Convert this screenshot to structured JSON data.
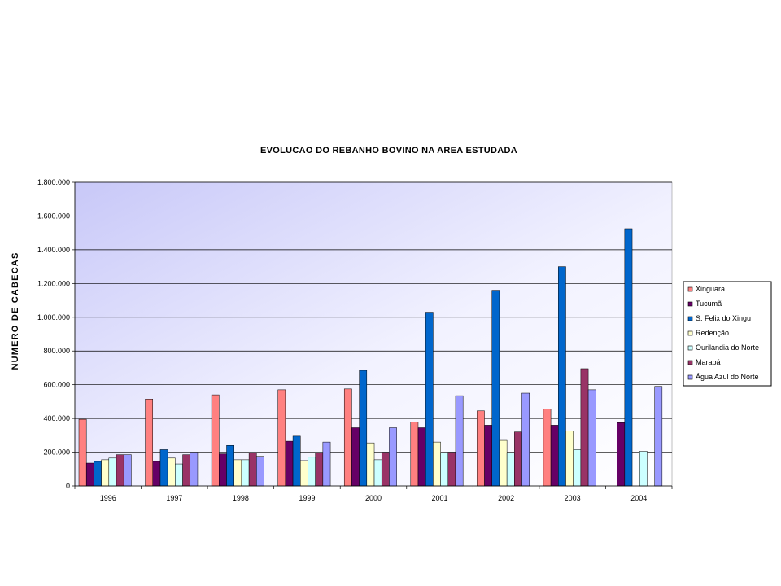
{
  "chart_data": {
    "type": "bar",
    "title": "EVOLUCAO DO REBANHO BOVINO NA AREA ESTUDADA",
    "xlabel": "",
    "ylabel": "NUMERO DE CABECAS",
    "categories": [
      "1996",
      "1997",
      "1998",
      "1999",
      "2000",
      "2001",
      "2002",
      "2003",
      "2004"
    ],
    "ylim": [
      0,
      1800000
    ],
    "yticks": [
      {
        "value": 0,
        "label": "0"
      },
      {
        "value": 200000,
        "label": "200.000"
      },
      {
        "value": 400000,
        "label": "400.000"
      },
      {
        "value": 600000,
        "label": "600.000"
      },
      {
        "value": 800000,
        "label": "800.000"
      },
      {
        "value": 1000000,
        "label": "1.000.000"
      },
      {
        "value": 1200000,
        "label": "1.200.000"
      },
      {
        "value": 1400000,
        "label": "1.400.000"
      },
      {
        "value": 1600000,
        "label": "1.600.000"
      },
      {
        "value": 1800000,
        "label": "1.800.000"
      }
    ],
    "grid": true,
    "legend_position": "right",
    "series": [
      {
        "name": "Xinguara",
        "color": "#FF8080",
        "values": [
          395000,
          515000,
          540000,
          570000,
          575000,
          380000,
          445000,
          455000,
          null
        ]
      },
      {
        "name": "Tucumã",
        "color": "#660066",
        "values": [
          135000,
          145000,
          190000,
          265000,
          345000,
          345000,
          360000,
          360000,
          375000
        ]
      },
      {
        "name": "S. Felix do Xingu",
        "color": "#0066CC",
        "values": [
          145000,
          215000,
          240000,
          295000,
          685000,
          1030000,
          1160000,
          1300000,
          1525000
        ]
      },
      {
        "name": "Redenção",
        "color": "#FFFFCC",
        "values": [
          155000,
          165000,
          155000,
          150000,
          255000,
          260000,
          270000,
          325000,
          null
        ]
      },
      {
        "name": "Ourilandia do Norte",
        "color": "#CCFFFF",
        "values": [
          165000,
          130000,
          155000,
          170000,
          155000,
          195000,
          195000,
          215000,
          205000
        ]
      },
      {
        "name": "Marabá",
        "color": "#993366",
        "values": [
          185000,
          185000,
          195000,
          195000,
          200000,
          200000,
          320000,
          695000,
          null
        ]
      },
      {
        "name": "Água Azul do Norte",
        "color": "#9999FF",
        "values": [
          185000,
          200000,
          175000,
          260000,
          345000,
          535000,
          550000,
          570000,
          590000
        ]
      }
    ]
  }
}
